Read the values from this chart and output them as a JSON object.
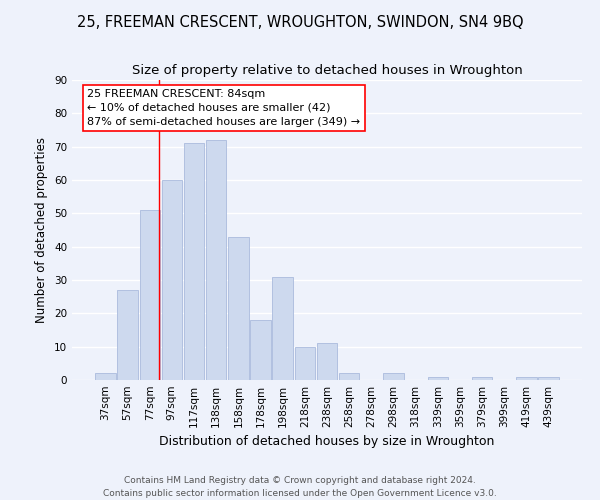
{
  "title": "25, FREEMAN CRESCENT, WROUGHTON, SWINDON, SN4 9BQ",
  "subtitle": "Size of property relative to detached houses in Wroughton",
  "xlabel": "Distribution of detached houses by size in Wroughton",
  "ylabel": "Number of detached properties",
  "bar_labels": [
    "37sqm",
    "57sqm",
    "77sqm",
    "97sqm",
    "117sqm",
    "138sqm",
    "158sqm",
    "178sqm",
    "198sqm",
    "218sqm",
    "238sqm",
    "258sqm",
    "278sqm",
    "298sqm",
    "318sqm",
    "339sqm",
    "359sqm",
    "379sqm",
    "399sqm",
    "419sqm",
    "439sqm"
  ],
  "bar_values": [
    2,
    27,
    51,
    60,
    71,
    72,
    43,
    18,
    31,
    10,
    11,
    2,
    0,
    2,
    0,
    1,
    0,
    1,
    0,
    1,
    1
  ],
  "bar_color": "#cdd9ee",
  "bar_edge_color": "#aabbdd",
  "ylim": [
    0,
    90
  ],
  "yticks": [
    0,
    10,
    20,
    30,
    40,
    50,
    60,
    70,
    80,
    90
  ],
  "property_line_x": 2.42,
  "property_line_label": "25 FREEMAN CRESCENT: 84sqm",
  "annotation_line1": "← 10% of detached houses are smaller (42)",
  "annotation_line2": "87% of semi-detached houses are larger (349) →",
  "footnote1": "Contains HM Land Registry data © Crown copyright and database right 2024.",
  "footnote2": "Contains public sector information licensed under the Open Government Licence v3.0.",
  "background_color": "#eef2fb",
  "grid_color": "#ffffff",
  "title_fontsize": 10.5,
  "subtitle_fontsize": 9.5,
  "xlabel_fontsize": 9,
  "ylabel_fontsize": 8.5,
  "tick_fontsize": 7.5,
  "annotation_fontsize": 8,
  "footnote_fontsize": 6.5
}
